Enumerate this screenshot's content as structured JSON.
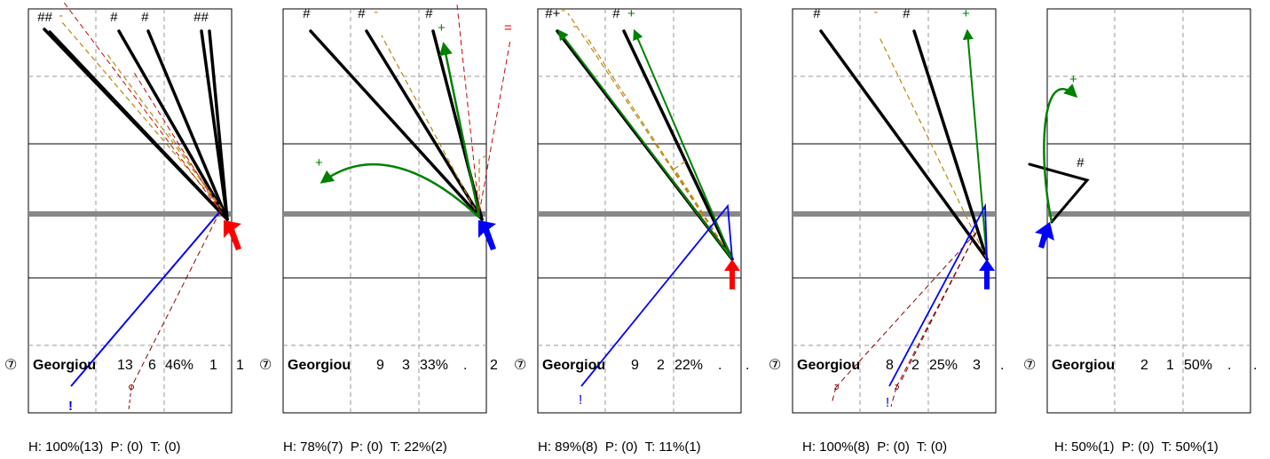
{
  "chart_data": {
    "type": "shot-map",
    "colors": {
      "hit": "#000000",
      "pass": "#b8860b",
      "turnover": "#008000",
      "error": "#0000ff",
      "foul": "#8b0000",
      "arrow_red": "#ff0000",
      "arrow_blue": "#0000ff",
      "frame": "#000000",
      "grid_dash": "#999999",
      "midline": "#888888"
    },
    "panels": [
      {
        "badge": "⑦",
        "player": "Georgiou",
        "stats": [
          "13",
          "6",
          "46%",
          "1",
          "1"
        ],
        "footer": "H: 100%(13)  P: (0)  T: (0)",
        "arrow_color": "red",
        "marks": [
          "##",
          "-",
          "#",
          "#",
          "##",
          "!"
        ]
      },
      {
        "badge": "⑦",
        "player": "Georgiou",
        "stats": [
          "9",
          "3",
          "33%",
          ".",
          "2"
        ],
        "footer": "H: 78%(7)  P: (0)  T: 22%(2)",
        "arrow_color": "blue",
        "marks": [
          "#",
          "#",
          "-",
          "#",
          "+",
          "=",
          "+"
        ]
      },
      {
        "badge": "⑦",
        "player": "Georgiou",
        "stats": [
          "9",
          "2",
          "22%",
          ".",
          "."
        ],
        "footer": "H: 89%(8)  P: (0)  T: 11%(1)",
        "arrow_color": "red",
        "marks": [
          "#+",
          "-",
          "-",
          "#",
          "+",
          "!"
        ]
      },
      {
        "badge": "⑦",
        "player": "Georgiou",
        "stats": [
          "8",
          "2",
          "25%",
          "3",
          "."
        ],
        "footer": "H: 100%(8)  P: (0)  T: (0)",
        "arrow_color": "blue",
        "marks": [
          "#",
          "-",
          "#",
          "+",
          "!"
        ]
      },
      {
        "badge": "⑦",
        "player": "Georgiou",
        "stats": [
          "2",
          "1",
          "50%",
          ".",
          "."
        ],
        "footer": "H: 50%(1)  P: (0)  T: 50%(1)",
        "arrow_color": "blue",
        "marks": [
          "+",
          "#"
        ]
      }
    ]
  }
}
